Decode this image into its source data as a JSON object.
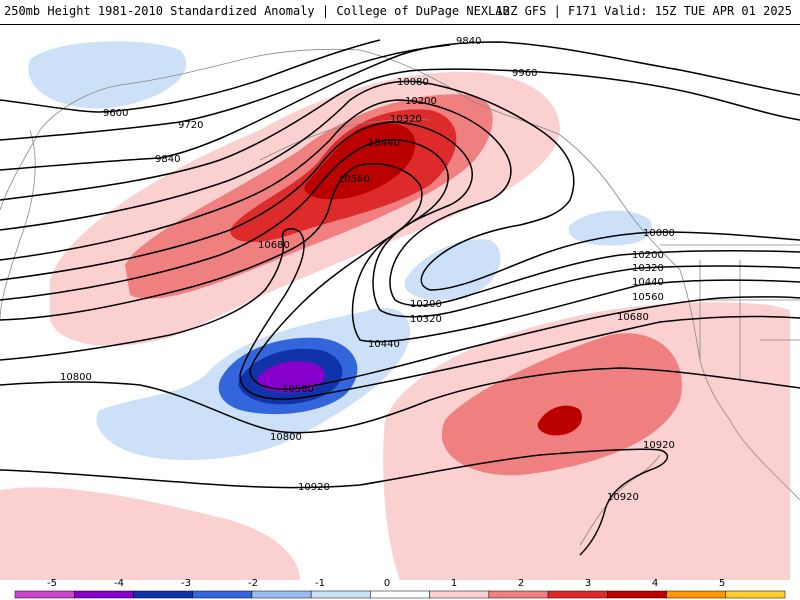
{
  "header": {
    "title_left": "250mb Height 1981-2010 Standardized Anomaly | College of DuPage NEXLAB",
    "title_right": "12Z GFS | F171 Valid: 15Z TUE APR 01 2025"
  },
  "contour_labels": {
    "c9840_top": "9840",
    "c9960": "9960",
    "c9600": "9600",
    "c9720": "9720",
    "c9840_left": "9840",
    "c10080_top": "10080",
    "c10200_top": "10200",
    "c10320_top": "10320",
    "c10440_top": "10440",
    "c10560_top": "10560",
    "c10680_left": "10680",
    "c10080_right": "10080",
    "c10200_right": "10200",
    "c10320_right": "10320",
    "c10440_right": "10440",
    "c10560_right": "10560",
    "c10680_right": "10680",
    "c10200_mid": "10200",
    "c10320_mid": "10320",
    "c10440_mid": "10440",
    "c10560_low": "10560",
    "c10800_left": "10800",
    "c10800_mid": "10800",
    "c10920_mid": "10920",
    "c10920_right": "10920",
    "c10920_baja": "10920"
  },
  "colorbar": {
    "labels": [
      "-5",
      "-4",
      "-3",
      "-2",
      "-1",
      "0",
      "1",
      "2",
      "3",
      "4",
      "5"
    ],
    "colors": [
      "#cc44cc",
      "#8800cc",
      "#1133aa",
      "#3366dd",
      "#99bbee",
      "#cce0f8",
      "#ffffff",
      "#fbd0d0",
      "#f08080",
      "#dd2a2a",
      "#bb0000",
      "#ff9900",
      "#ffcc33"
    ]
  }
}
